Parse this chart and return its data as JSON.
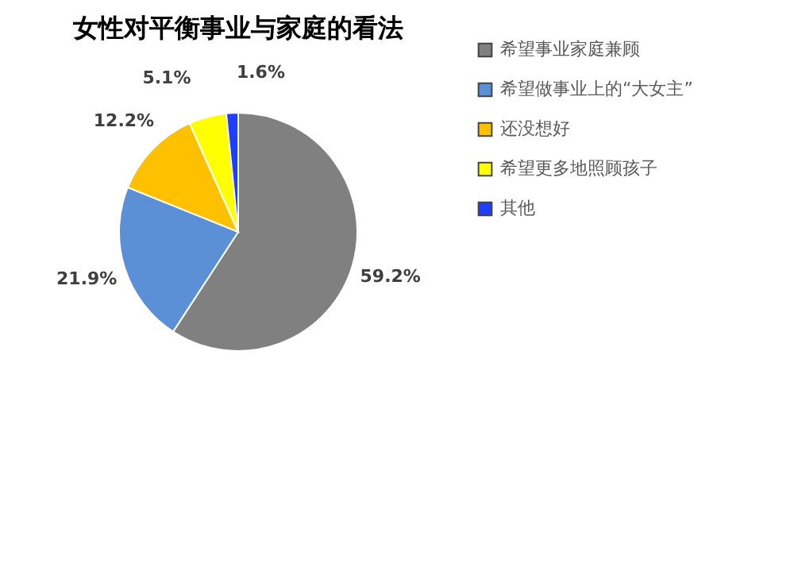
{
  "chart_data": {
    "type": "pie",
    "title": "女性对平衡事业与家庭的看法",
    "categories": [
      "希望事业家庭兼顾",
      "希望做事业上的“大女主”",
      "还没想好",
      "希望更多地照顾孩子",
      "其他"
    ],
    "values": [
      59.2,
      21.9,
      12.2,
      5.1,
      1.6
    ],
    "colors": [
      "#808080",
      "#5b8fd6",
      "#ffc000",
      "#ffff00",
      "#1f3fff"
    ],
    "value_labels": [
      "59.2%",
      "21.9%",
      "12.2%",
      "5.1%",
      "1.6%"
    ],
    "legend": "right"
  }
}
